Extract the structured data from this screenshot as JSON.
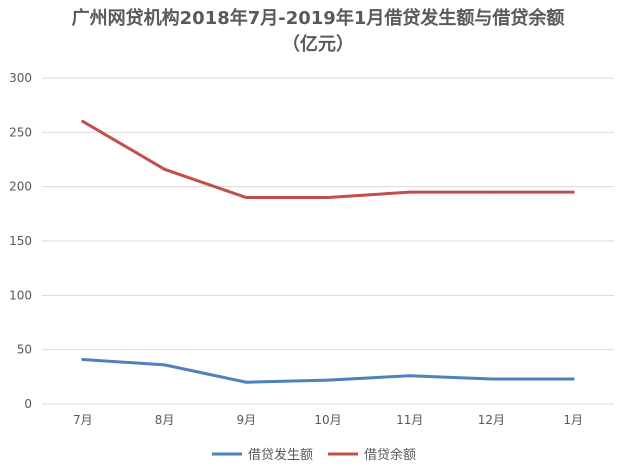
{
  "chart_data": {
    "type": "line",
    "title_line1": "广州网贷机构2018年7月-2019年1月借贷发生额与借贷余额",
    "title_line2": "（亿元）",
    "categories": [
      "7月",
      "8月",
      "9月",
      "10月",
      "11月",
      "12月",
      "1月"
    ],
    "series": [
      {
        "name": "借贷发生额",
        "color": "#4f81bd",
        "values": [
          41,
          36,
          20,
          22,
          26,
          23,
          23
        ]
      },
      {
        "name": "借贷余额",
        "color": "#c0504d",
        "values": [
          260,
          216,
          190,
          190,
          195,
          195,
          195
        ]
      }
    ],
    "ylim": [
      0,
      300
    ],
    "yticks": [
      "0",
      "50",
      "100",
      "150",
      "200",
      "250",
      "300"
    ],
    "grid": true,
    "legend": "bottom"
  }
}
